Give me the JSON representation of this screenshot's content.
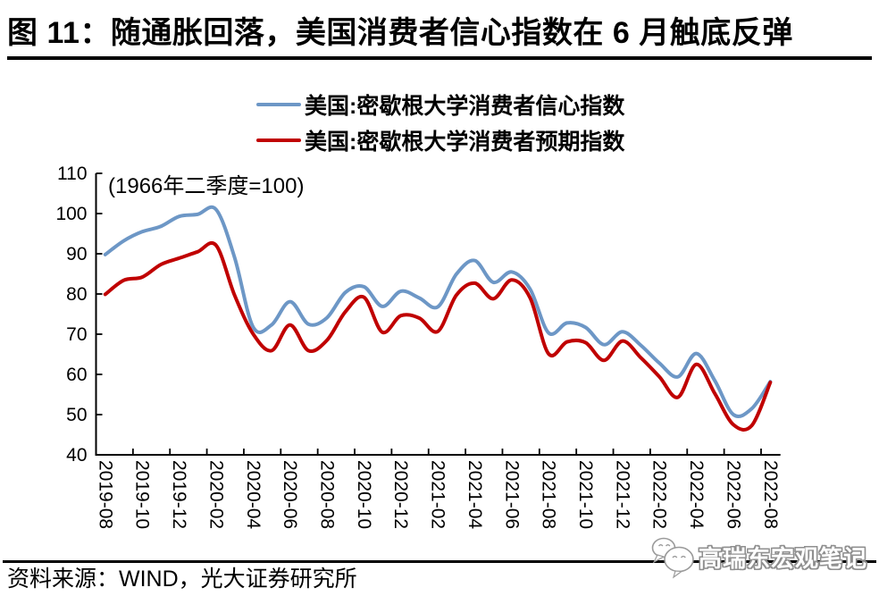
{
  "title": "图 11：随通胀回落，美国消费者信心指数在 6 月触底反弹",
  "legend": [
    {
      "label": "美国:密歇根大学消费者信心指数",
      "color": "#6D97C6"
    },
    {
      "label": "美国:密歇根大学消费者预期指数",
      "color": "#C00000"
    }
  ],
  "source": "资料来源：WIND，光大证券研究所",
  "watermark": {
    "text": "高瑞东宏观笔记",
    "icon": "wechat-icon"
  },
  "chart_data": {
    "type": "line",
    "title": "",
    "annotation": "(1966年二季度=100)",
    "xlabel": "",
    "ylabel": "",
    "ylim": [
      40,
      110
    ],
    "y_ticks": [
      40,
      50,
      60,
      70,
      80,
      90,
      100,
      110
    ],
    "grid": false,
    "legend_position": "top",
    "smoothed": true,
    "x": [
      "2019-08",
      "2019-09",
      "2019-10",
      "2019-11",
      "2019-12",
      "2020-01",
      "2020-02",
      "2020-03",
      "2020-04",
      "2020-05",
      "2020-06",
      "2020-07",
      "2020-08",
      "2020-09",
      "2020-10",
      "2020-11",
      "2020-12",
      "2021-01",
      "2021-02",
      "2021-03",
      "2021-04",
      "2021-05",
      "2021-06",
      "2021-07",
      "2021-08",
      "2021-09",
      "2021-10",
      "2021-11",
      "2021-12",
      "2022-01",
      "2022-02",
      "2022-03",
      "2022-04",
      "2022-05",
      "2022-06",
      "2022-07",
      "2022-08"
    ],
    "x_tick_labels": [
      "2019-08",
      "2019-10",
      "2019-12",
      "2020-02",
      "2020-04",
      "2020-06",
      "2020-08",
      "2020-10",
      "2020-12",
      "2021-02",
      "2021-04",
      "2021-06",
      "2021-08",
      "2021-10",
      "2021-12",
      "2022-02",
      "2022-04",
      "2022-06",
      "2022-08"
    ],
    "series": [
      {
        "name": "美国:密歇根大学消费者信心指数",
        "color": "#6D97C6",
        "values": [
          89.8,
          93.2,
          95.5,
          96.8,
          99.3,
          99.8,
          101.0,
          89.1,
          71.8,
          72.3,
          78.1,
          72.5,
          74.1,
          80.4,
          81.8,
          76.9,
          80.7,
          79.0,
          76.8,
          84.9,
          88.3,
          82.9,
          85.5,
          81.2,
          70.3,
          72.8,
          71.7,
          67.4,
          70.6,
          67.2,
          62.8,
          59.4,
          65.2,
          58.4,
          50.0,
          51.5,
          58.2
        ]
      },
      {
        "name": "美国:密歇根大学消费者预期指数",
        "color": "#C00000",
        "values": [
          79.9,
          83.4,
          84.2,
          87.3,
          88.9,
          90.5,
          92.1,
          79.7,
          70.1,
          65.9,
          72.3,
          65.9,
          68.5,
          75.6,
          79.2,
          70.5,
          74.6,
          74.0,
          70.7,
          79.7,
          82.7,
          78.8,
          83.5,
          79.0,
          65.1,
          68.1,
          67.9,
          63.5,
          68.3,
          64.1,
          59.4,
          54.3,
          62.5,
          55.2,
          47.5,
          47.3,
          58.0
        ]
      }
    ]
  }
}
